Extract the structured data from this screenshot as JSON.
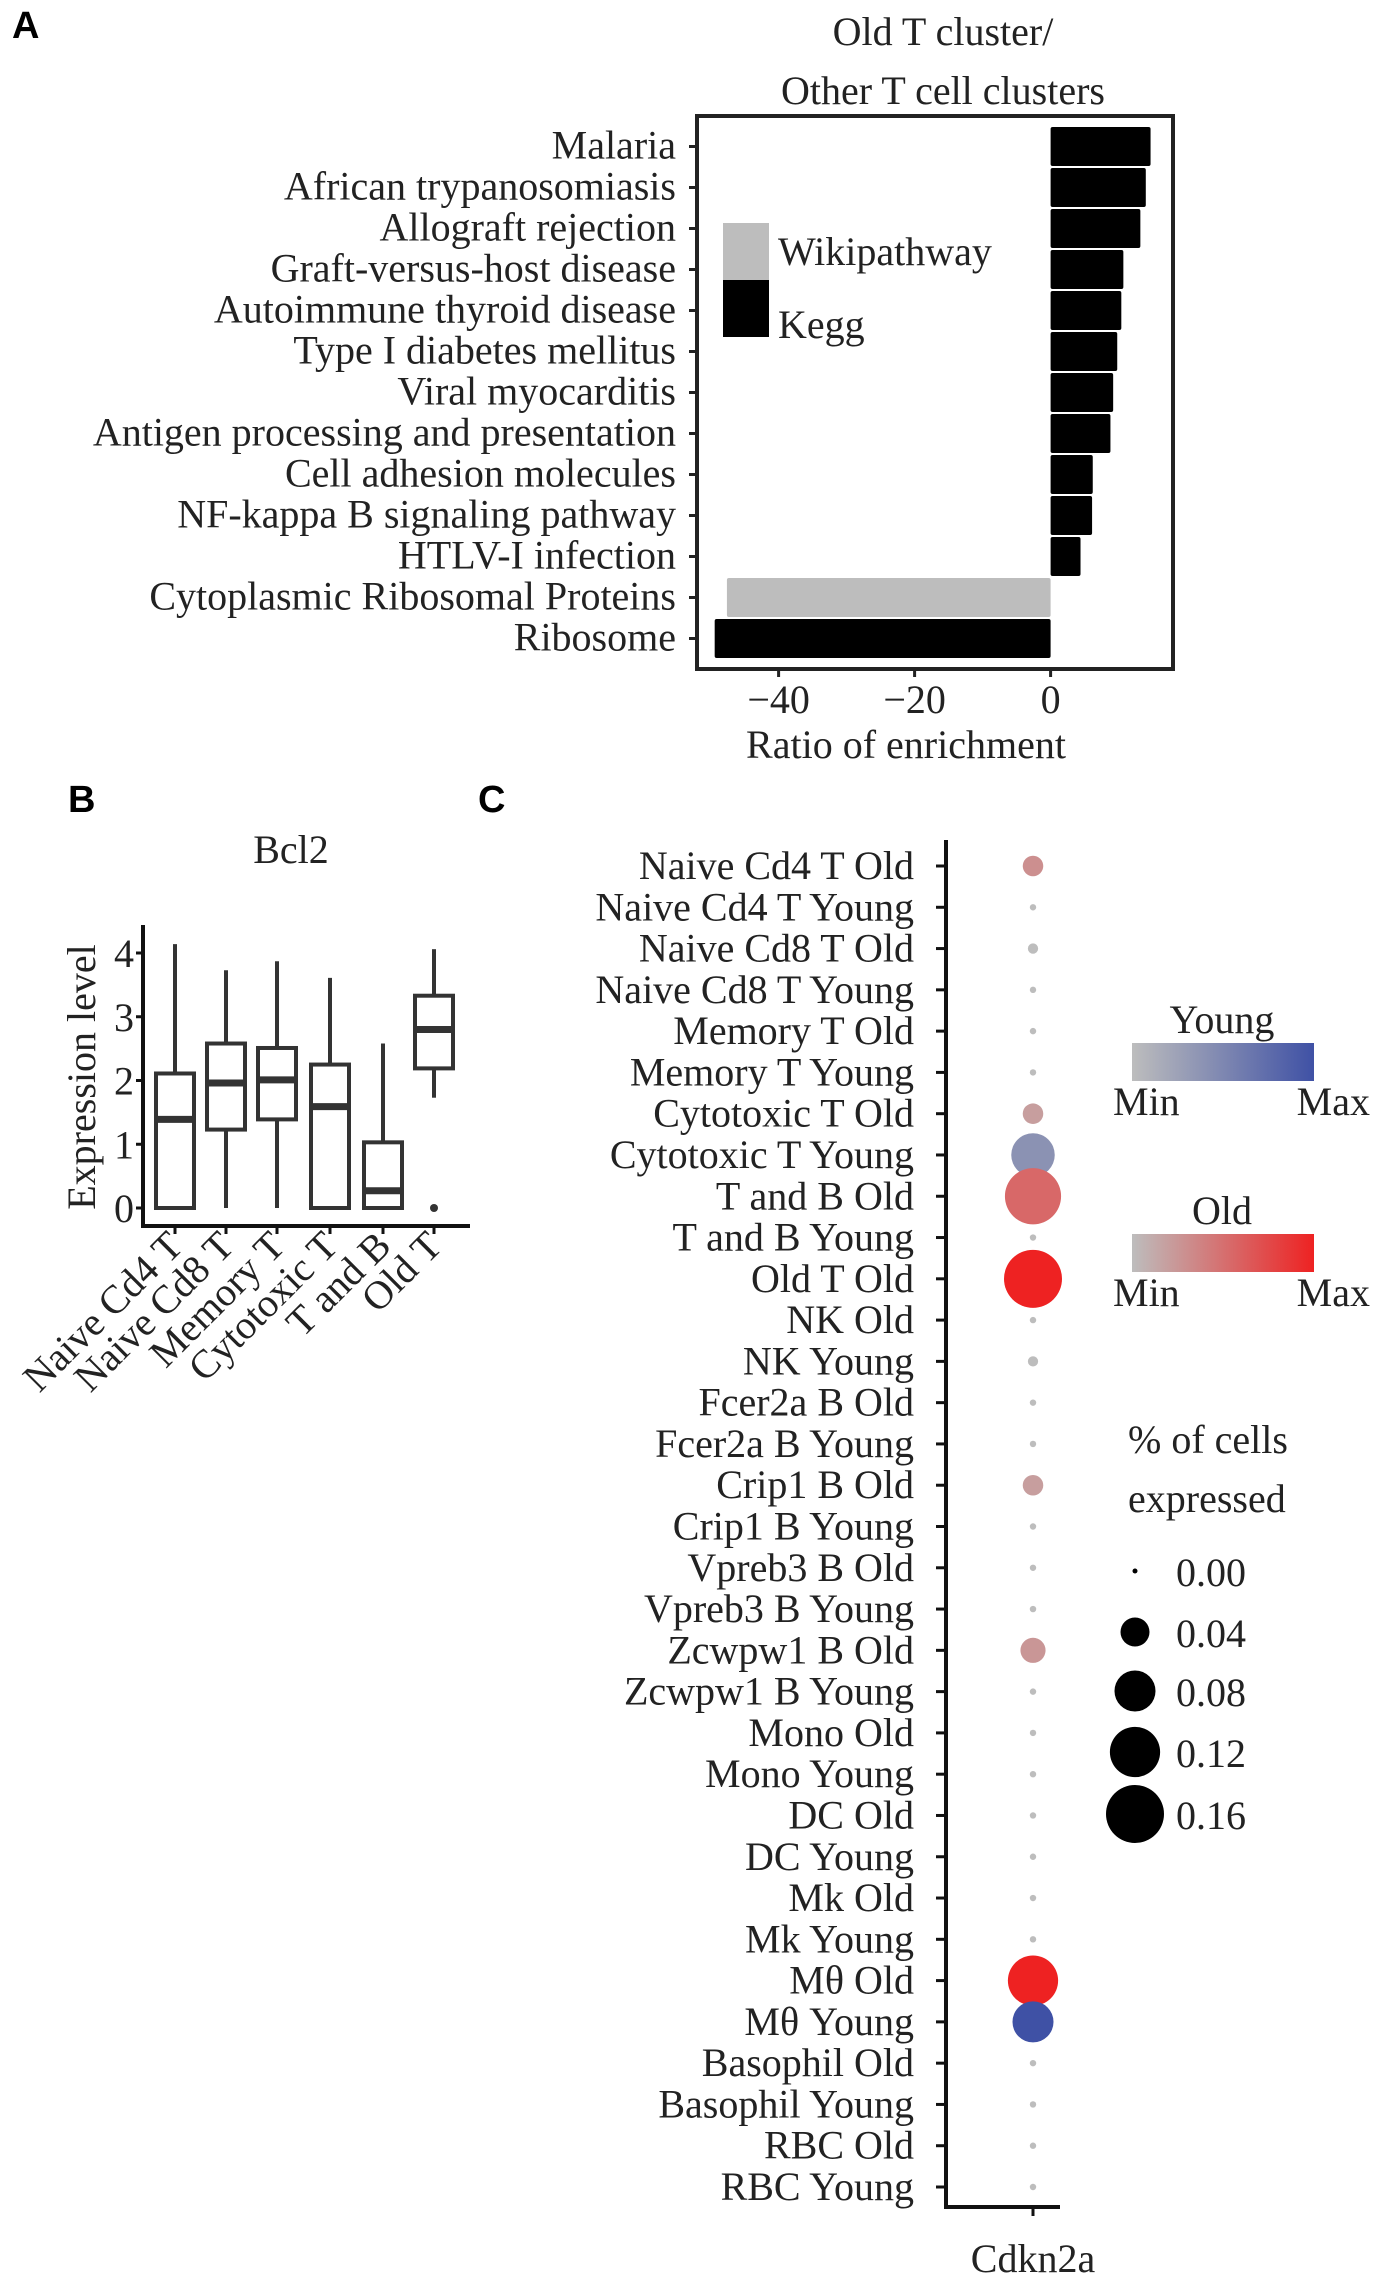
{
  "panels": {
    "a": "A",
    "b": "B",
    "c": "C"
  },
  "chart_data": [
    {
      "type": "bar",
      "orientation": "horizontal",
      "title": [
        "Old T cluster/",
        "Other T cell clusters"
      ],
      "xlabel": "Ratio of enrichment",
      "xlim": [
        -52,
        18
      ],
      "xticks": [
        {
          "v": -40,
          "label": "−40"
        },
        {
          "v": -20,
          "label": "−20"
        },
        {
          "v": 0,
          "label": "0"
        }
      ],
      "legend": {
        "position": "top-left",
        "items": [
          {
            "name": "Wikipathway",
            "color": "#bdbdbd"
          },
          {
            "name": "Kegg",
            "color": "#000000"
          }
        ]
      },
      "categories": [
        "Malaria",
        "African trypanosomiasis",
        "Allograft rejection",
        "Graft-versus-host disease",
        "Autoimmune thyroid disease",
        "Type I diabetes mellitus",
        "Viral myocarditis",
        "Antigen processing and presentation",
        "Cell adhesion molecules",
        "NF-kappa B signaling pathway",
        "HTLV-I infection",
        "Cytoplasmic Ribosomal Proteins",
        "Ribosome"
      ],
      "values": [
        14.7,
        14.0,
        13.2,
        10.7,
        10.4,
        9.8,
        9.2,
        8.8,
        6.2,
        6.1,
        4.4,
        -47.6,
        -49.4
      ],
      "source": [
        "Kegg",
        "Kegg",
        "Kegg",
        "Kegg",
        "Kegg",
        "Kegg",
        "Kegg",
        "Kegg",
        "Kegg",
        "Kegg",
        "Kegg",
        "Wikipathway",
        "Kegg"
      ]
    },
    {
      "type": "box",
      "title": "Bcl2",
      "ylabel": "Expression level",
      "ylim": [
        -0.2,
        4.3
      ],
      "yticks": [
        0,
        1,
        2,
        3,
        4
      ],
      "categories": [
        "Naive Cd4 T",
        "Naive Cd8 T",
        "Memory T",
        "Cytotoxic T",
        "T and B",
        "Old T"
      ],
      "boxes": [
        {
          "min": 0,
          "q1": 0,
          "median": 1.39,
          "q3": 2.11,
          "max": 4.14,
          "outliers": []
        },
        {
          "min": 0,
          "q1": 1.23,
          "median": 1.96,
          "q3": 2.58,
          "max": 3.73,
          "outliers": []
        },
        {
          "min": 0,
          "q1": 1.39,
          "median": 2.01,
          "q3": 2.51,
          "max": 3.87,
          "outliers": []
        },
        {
          "min": 0,
          "q1": 0,
          "median": 1.59,
          "q3": 2.25,
          "max": 3.61,
          "outliers": []
        },
        {
          "min": 0,
          "q1": 0,
          "median": 0.27,
          "q3": 1.03,
          "max": 2.58,
          "outliers": []
        },
        {
          "min": 1.73,
          "q1": 2.19,
          "median": 2.8,
          "q3": 3.33,
          "max": 4.06,
          "outliers": [
            0
          ]
        }
      ]
    },
    {
      "type": "dot",
      "xcategory": "Cdkn2a",
      "rows": [
        "Naive Cd4 T Old",
        "Naive Cd4 T Young",
        "Naive Cd8 T Old",
        "Naive Cd8 T Young",
        "Memory T Old",
        "Memory T Young",
        "Cytotoxic T Old",
        "Cytotoxic T Young",
        "T and B Old",
        "T and B Young",
        "Old T Old",
        "NK Old",
        "NK Young",
        "Fcer2a B Old",
        "Fcer2a B Young",
        "Crip1 B Old",
        "Crip1 B Young",
        "Vpreb3 B Old",
        "Vpreb3 B Young",
        "Zcwpw1 B Old",
        "Zcwpw1 B Young",
        "Mono Old",
        "Mono Young",
        "DC Old",
        "DC Young",
        "Mk Old",
        "Mk Young",
        "Mθ Old",
        "Mθ Young",
        "Basophil Old",
        "Basophil Young",
        "RBC Old",
        "RBC Young"
      ],
      "pct_expressed": [
        0.02,
        0,
        0.005,
        0,
        0,
        0,
        0.02,
        0.09,
        0.15,
        0,
        0.16,
        0,
        0.005,
        0,
        0,
        0.02,
        0,
        0,
        0,
        0.03,
        0,
        0,
        0,
        0,
        0,
        0,
        0,
        0.12,
        0.08,
        0,
        0,
        0,
        0
      ],
      "expression_scaled": [
        0.3,
        0,
        0,
        0,
        0,
        0,
        0.2,
        0.4,
        0.55,
        0,
        1,
        0,
        0,
        0,
        0,
        0.2,
        0,
        0,
        0,
        0.25,
        0,
        0,
        0,
        0,
        0,
        0,
        0,
        1,
        1,
        0,
        0,
        0,
        0
      ],
      "color_legends": [
        {
          "title": "Young",
          "min_label": "Min",
          "max_label": "Max",
          "low": "#bdbdbd",
          "high": "#3f51a5"
        },
        {
          "title": "Old",
          "min_label": "Min",
          "max_label": "Max",
          "low": "#bdbdbd",
          "high": "#ee2222"
        }
      ],
      "size_legend": {
        "title": [
          "% of cells",
          "expressed"
        ],
        "values": [
          0.0,
          0.04,
          0.08,
          0.12,
          0.16
        ],
        "labels": [
          "0.00",
          "0.04",
          "0.08",
          "0.12",
          "0.16"
        ]
      }
    }
  ]
}
